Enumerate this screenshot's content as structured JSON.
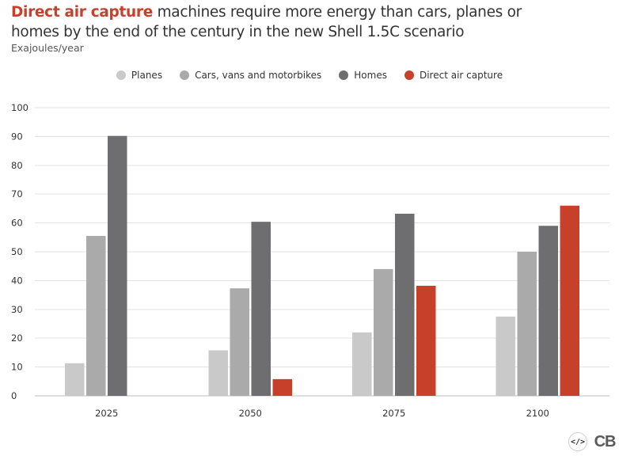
{
  "title": {
    "highlight": "Direct air capture",
    "rest": " machines require more energy than cars, planes or homes by the end of the century in the new Shell 1.5C scenario"
  },
  "subtitle": "Exajoules/year",
  "footer": {
    "embed_icon": "code-embed-icon",
    "logo_text": "CB"
  },
  "chart_data": {
    "type": "bar",
    "title": "Direct air capture machines require more energy than cars, planes or homes by the end of the century in the new Shell 1.5C scenario",
    "ylabel": "Exajoules/year",
    "xlabel": "",
    "categories": [
      "2025",
      "2050",
      "2075",
      "2100"
    ],
    "ylim": [
      0,
      100
    ],
    "yticks": [
      0,
      10,
      20,
      30,
      40,
      50,
      60,
      70,
      80,
      90,
      100
    ],
    "grid": true,
    "legend_position": "top-center",
    "series": [
      {
        "name": "Planes",
        "color": "#c9c9c9",
        "values": [
          11.3,
          15.8,
          22.0,
          27.5
        ]
      },
      {
        "name": "Cars, vans and motorbikes",
        "color": "#aaaaab",
        "values": [
          55.5,
          37.3,
          44.0,
          50.0
        ]
      },
      {
        "name": "Homes",
        "color": "#6e6e70",
        "values": [
          90.2,
          60.4,
          63.2,
          59.0
        ]
      },
      {
        "name": "Direct air capture",
        "color": "#c7402a",
        "values": [
          0,
          5.8,
          38.2,
          66.0
        ]
      }
    ]
  }
}
